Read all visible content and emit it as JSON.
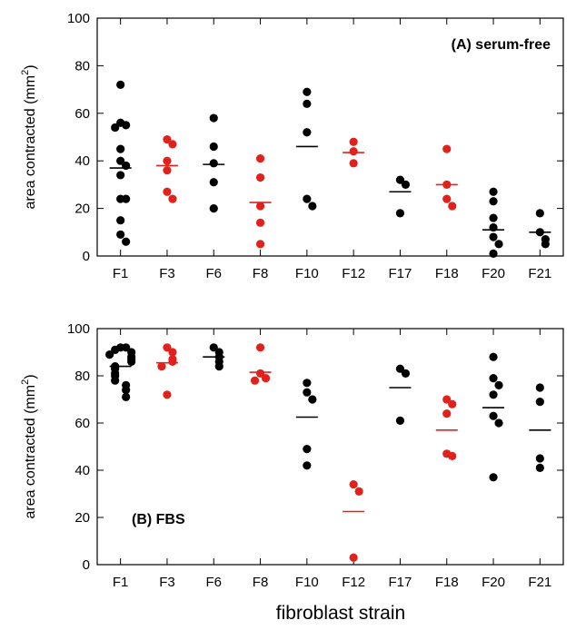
{
  "figure": {
    "xlabel": "fibroblast strain"
  },
  "colors": {
    "black_strain": "#000000",
    "red_strain": "#e0211c",
    "frame": "#000000"
  },
  "chart_data": [
    {
      "type": "scatter",
      "panel_label": "(A) serum-free",
      "label_position": "top-right",
      "ylabel": "area contracted (mm",
      "ylabel_sup": "2",
      "ylabel_close": ")",
      "ylim": [
        0,
        100
      ],
      "yticks": [
        "0",
        "20",
        "40",
        "60",
        "80",
        "100"
      ],
      "categories": [
        "F1",
        "F3",
        "F6",
        "F8",
        "F10",
        "F12",
        "F17",
        "F18",
        "F20",
        "F21"
      ],
      "strains": [
        {
          "name": "F1",
          "color": "black",
          "mean": 37,
          "points": [
            72,
            56,
            55,
            54,
            45,
            40,
            38,
            34,
            24,
            24,
            15,
            9,
            6
          ]
        },
        {
          "name": "F3",
          "color": "red",
          "mean": 38,
          "points": [
            49,
            47,
            40,
            36,
            27,
            24
          ]
        },
        {
          "name": "F6",
          "color": "black",
          "mean": 38.5,
          "points": [
            58,
            46,
            39,
            31,
            20
          ]
        },
        {
          "name": "F8",
          "color": "red",
          "mean": 22.5,
          "points": [
            41,
            33,
            21,
            14,
            5
          ]
        },
        {
          "name": "F10",
          "color": "black",
          "mean": 46,
          "points": [
            69,
            64,
            52,
            24,
            21
          ]
        },
        {
          "name": "F12",
          "color": "red",
          "mean": 43.5,
          "points": [
            48,
            44,
            39
          ]
        },
        {
          "name": "F17",
          "color": "black",
          "mean": 27,
          "points": [
            32,
            30,
            18
          ]
        },
        {
          "name": "F18",
          "color": "red",
          "mean": 30,
          "points": [
            45,
            30,
            24,
            21
          ]
        },
        {
          "name": "F20",
          "color": "black",
          "mean": 11,
          "points": [
            27,
            23,
            16,
            12,
            8,
            5,
            1
          ]
        },
        {
          "name": "F21",
          "color": "black",
          "mean": 10,
          "points": [
            18,
            10,
            7,
            5
          ]
        }
      ]
    },
    {
      "type": "scatter",
      "panel_label": "(B) FBS",
      "label_position": "bottom-left",
      "ylabel": "area contracted (mm",
      "ylabel_sup": "2",
      "ylabel_close": ")",
      "ylim": [
        0,
        100
      ],
      "yticks": [
        "0",
        "20",
        "40",
        "60",
        "80",
        "100"
      ],
      "categories": [
        "F1",
        "F3",
        "F6",
        "F8",
        "F10",
        "F12",
        "F17",
        "F18",
        "F20",
        "F21"
      ],
      "strains": [
        {
          "name": "F1",
          "color": "black",
          "mean": 84,
          "points": [
            92,
            92,
            91,
            90,
            89,
            88,
            87,
            86,
            84,
            83,
            81,
            80,
            78,
            76,
            74,
            71
          ]
        },
        {
          "name": "F3",
          "color": "red",
          "mean": 85.5,
          "points": [
            92,
            90,
            87,
            86,
            84,
            72
          ]
        },
        {
          "name": "F6",
          "color": "black",
          "mean": 88,
          "points": [
            92,
            90,
            88,
            86,
            84
          ]
        },
        {
          "name": "F8",
          "color": "red",
          "mean": 81.5,
          "points": [
            92,
            81,
            79,
            78
          ]
        },
        {
          "name": "F10",
          "color": "black",
          "mean": 62.5,
          "points": [
            77,
            73,
            70,
            49,
            42
          ]
        },
        {
          "name": "F12",
          "color": "red",
          "mean": 22.5,
          "points": [
            34,
            31,
            3
          ]
        },
        {
          "name": "F17",
          "color": "black",
          "mean": 75,
          "points": [
            83,
            81,
            61
          ]
        },
        {
          "name": "F18",
          "color": "red",
          "mean": 57,
          "points": [
            70,
            68,
            64,
            47,
            46
          ]
        },
        {
          "name": "F20",
          "color": "black",
          "mean": 66.5,
          "points": [
            88,
            79,
            76,
            72,
            63,
            60,
            37
          ]
        },
        {
          "name": "F21",
          "color": "black",
          "mean": 57,
          "points": [
            75,
            69,
            45,
            41
          ]
        }
      ]
    }
  ]
}
